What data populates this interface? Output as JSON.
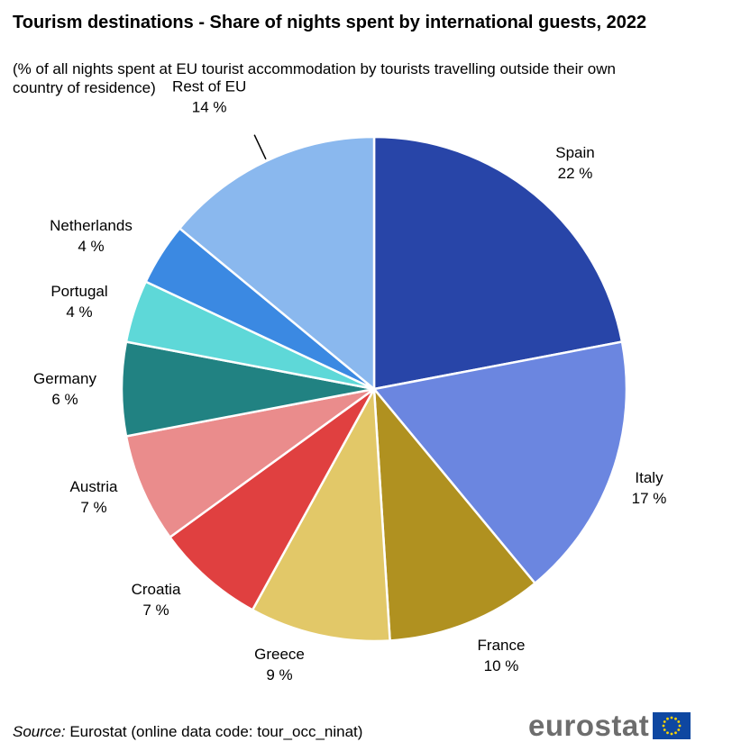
{
  "title": "Tourism destinations - Share of nights spent by international guests, 2022",
  "subtitle": "(% of all nights spent at EU tourist accommodation by tourists travelling outside their own country of residence)",
  "source": {
    "label": "Source:",
    "text": "Eurostat (online data code: tour_occ_ninat)"
  },
  "logo": {
    "text": "eurostat",
    "flag_icon": "eu-flag-icon"
  },
  "chart_data": {
    "type": "pie",
    "title": "Tourism destinations - Share of nights spent by international guests, 2022",
    "unit": "%",
    "slices": [
      {
        "name": "Spain",
        "value": 22,
        "label": "22 %",
        "color": "#2845A8"
      },
      {
        "name": "Italy",
        "value": 17,
        "label": "17 %",
        "color": "#6B86E0"
      },
      {
        "name": "France",
        "value": 10,
        "label": "10 %",
        "color": "#B09120"
      },
      {
        "name": "Greece",
        "value": 9,
        "label": "9 %",
        "color": "#E2C868"
      },
      {
        "name": "Croatia",
        "value": 7,
        "label": "7 %",
        "color": "#E04040"
      },
      {
        "name": "Austria",
        "value": 7,
        "label": "7 %",
        "color": "#EA8C8C"
      },
      {
        "name": "Germany",
        "value": 6,
        "label": "6 %",
        "color": "#218282"
      },
      {
        "name": "Portugal",
        "value": 4,
        "label": "4 %",
        "color": "#5ED8D8"
      },
      {
        "name": "Netherlands",
        "value": 4,
        "label": "4 %",
        "color": "#3B89E2"
      },
      {
        "name": "Rest of EU",
        "value": 14,
        "label": "14 %",
        "color": "#8AB8EE"
      }
    ]
  }
}
